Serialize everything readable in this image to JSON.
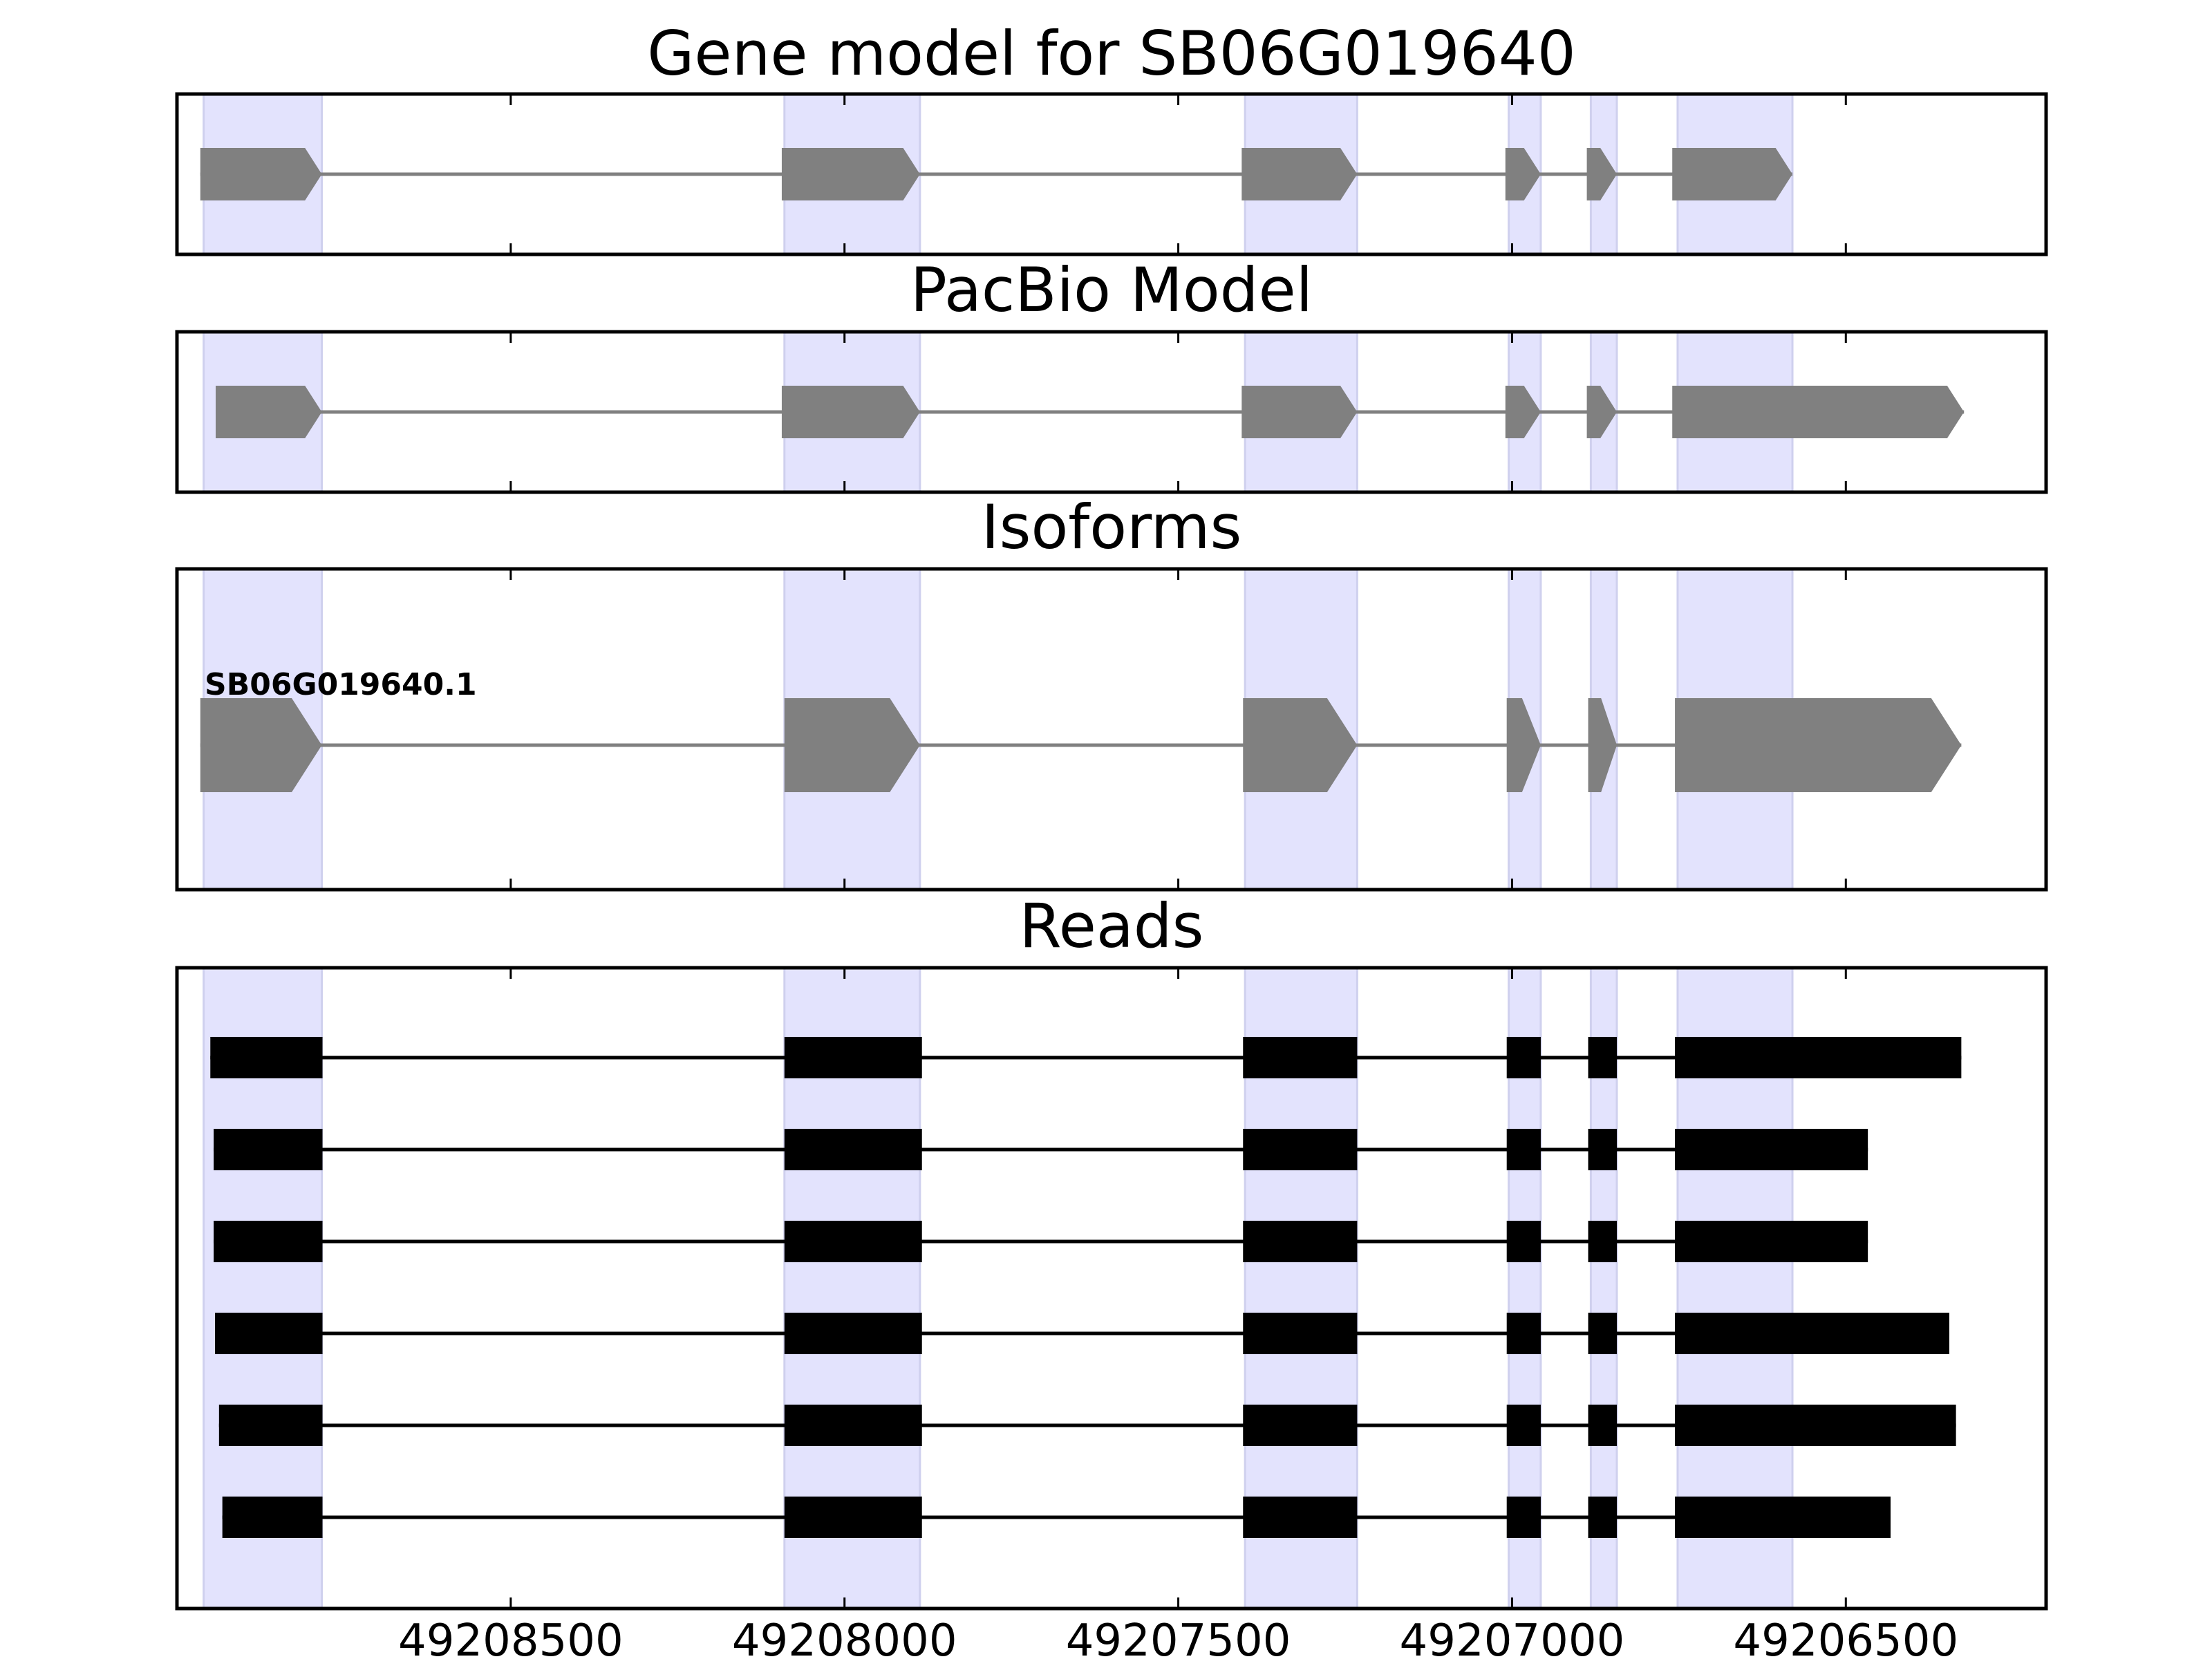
{
  "chart_data": {
    "type": "gene-structure",
    "x_axis": {
      "reversed": true,
      "lim": [
        49209000,
        49206200
      ],
      "ticks": [
        49208500,
        49208000,
        49207500,
        49207000,
        49206500
      ],
      "tick_labels": [
        "49208500",
        "49208000",
        "49207500",
        "49207000",
        "49206500"
      ]
    },
    "highlight_regions": [
      [
        49208960,
        49208783
      ],
      [
        49208090,
        49207887
      ],
      [
        49207400,
        49207232
      ],
      [
        49207005,
        49206957
      ],
      [
        49206882,
        49206843
      ],
      [
        49206752,
        49206580
      ]
    ],
    "panels": [
      {
        "title": "Gene model for SB06G019640",
        "strand": "-",
        "tracks": [
          {
            "label": "",
            "exons": [
              [
                49208965,
                49208783
              ],
              [
                49208094,
                49207887
              ],
              [
                49207405,
                49207232
              ],
              [
                49207010,
                49206957
              ],
              [
                49206888,
                49206843
              ],
              [
                49206760,
                49206580
              ]
            ]
          }
        ]
      },
      {
        "title": "PacBio Model",
        "strand": "-",
        "tracks": [
          {
            "label": "",
            "exons": [
              [
                49208942,
                49208783
              ],
              [
                49208094,
                49207887
              ],
              [
                49207405,
                49207232
              ],
              [
                49207010,
                49206957
              ],
              [
                49206888,
                49206843
              ],
              [
                49206760,
                49206323
              ]
            ]
          }
        ]
      },
      {
        "title": "Isoforms",
        "strand": "-",
        "tracks": [
          {
            "label": "SB06G019640.1",
            "exons": [
              [
                49208965,
                49208783
              ],
              [
                49208090,
                49207887
              ],
              [
                49207403,
                49207232
              ],
              [
                49207008,
                49206957
              ],
              [
                49206886,
                49206843
              ],
              [
                49206756,
                49206327
              ]
            ]
          }
        ]
      },
      {
        "title": "Reads",
        "strand": "none",
        "tracks": [
          {
            "label": "",
            "exons": [
              [
                49208950,
                49208782
              ],
              [
                49208090,
                49207884
              ],
              [
                49207403,
                49207232
              ],
              [
                49207008,
                49206957
              ],
              [
                49206886,
                49206843
              ],
              [
                49206756,
                49206327
              ]
            ]
          },
          {
            "label": "",
            "exons": [
              [
                49208945,
                49208782
              ],
              [
                49208090,
                49207884
              ],
              [
                49207403,
                49207232
              ],
              [
                49207008,
                49206957
              ],
              [
                49206886,
                49206843
              ],
              [
                49206756,
                49206467
              ]
            ]
          },
          {
            "label": "",
            "exons": [
              [
                49208945,
                49208782
              ],
              [
                49208090,
                49207884
              ],
              [
                49207403,
                49207232
              ],
              [
                49207008,
                49206957
              ],
              [
                49206886,
                49206843
              ],
              [
                49206756,
                49206467
              ]
            ]
          },
          {
            "label": "",
            "exons": [
              [
                49208943,
                49208782
              ],
              [
                49208090,
                49207884
              ],
              [
                49207403,
                49207232
              ],
              [
                49207008,
                49206957
              ],
              [
                49206886,
                49206843
              ],
              [
                49206756,
                49206345
              ]
            ]
          },
          {
            "label": "",
            "exons": [
              [
                49208937,
                49208782
              ],
              [
                49208090,
                49207884
              ],
              [
                49207403,
                49207232
              ],
              [
                49207008,
                49206957
              ],
              [
                49206886,
                49206843
              ],
              [
                49206756,
                49206335
              ]
            ]
          },
          {
            "label": "",
            "exons": [
              [
                49208932,
                49208782
              ],
              [
                49208090,
                49207884
              ],
              [
                49207403,
                49207232
              ],
              [
                49207008,
                49206957
              ],
              [
                49206886,
                49206843
              ],
              [
                49206756,
                49206433
              ]
            ]
          }
        ]
      }
    ],
    "colors": {
      "highlight": "#e3e3fd",
      "highlight_edge": "#cfd0ee",
      "model_exon": "#808080",
      "model_intron": "#808080",
      "read_exon": "#000000",
      "read_intron": "#000000",
      "frame": "#000000"
    }
  }
}
